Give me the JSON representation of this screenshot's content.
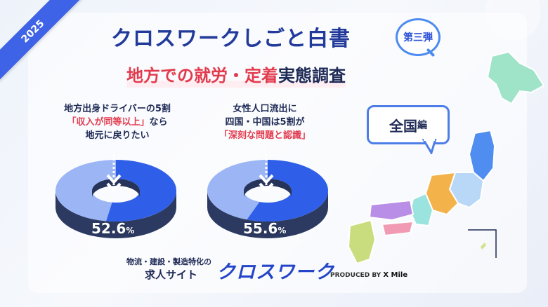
{
  "year": "2025",
  "title": "クロスワークしごと白書",
  "badge": "第三弾",
  "subtitle": {
    "red_part": "地方での就労・定着",
    "dark_part": "実態調査"
  },
  "left_caption": {
    "line1": "地方出身ドライバーの5割",
    "line2": "「収入が同等以上」",
    "line2_tail": "なら",
    "line3": "地元に戻りたい"
  },
  "right_caption": {
    "line1": "女性人口流出に",
    "line2": "四国・中国は5割が",
    "line3": "「深刻な問題と認識」"
  },
  "left_value": {
    "number": "52.6",
    "unit": "%"
  },
  "right_value": {
    "number": "55.6",
    "unit": "%"
  },
  "callout": {
    "main": "全国",
    "suffix": "編"
  },
  "footer": {
    "small": "物流・建設・製造特化の",
    "big": "求人サイト",
    "logo": "クロスワーク",
    "produced_by": "PRODUCED BY",
    "company": "X Mile"
  },
  "chart_data": [
    {
      "type": "pie",
      "values": [
        52.6,
        47.4
      ],
      "labels": [
        "",
        ""
      ],
      "colors": [
        "#2f5fe8",
        "#9cb6f5"
      ]
    },
    {
      "type": "pie",
      "values": [
        55.6,
        44.4
      ],
      "labels": [
        "",
        ""
      ],
      "colors": [
        "#2f5fe8",
        "#9cb6f5"
      ]
    }
  ],
  "colors": {
    "accent": "#3f63e6",
    "red": "#e23b4e",
    "navy": "#1e2a55"
  }
}
